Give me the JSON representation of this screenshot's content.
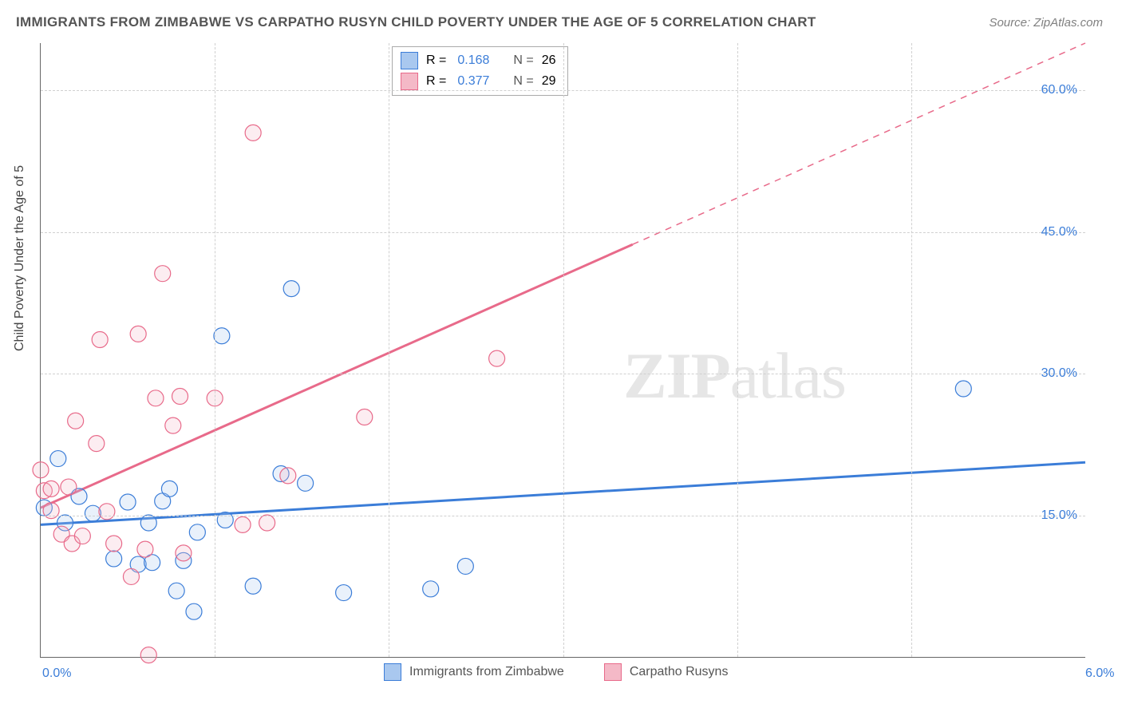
{
  "title": "IMMIGRANTS FROM ZIMBABWE VS CARPATHO RUSYN CHILD POVERTY UNDER THE AGE OF 5 CORRELATION CHART",
  "source": "Source: ZipAtlas.com",
  "watermark_bold": "ZIP",
  "watermark_light": "atlas",
  "yaxis_title": "Child Poverty Under the Age of 5",
  "chart": {
    "type": "scatter",
    "background_color": "#ffffff",
    "grid_color": "#d0d0d0",
    "axis_color": "#666666",
    "tick_label_color": "#3b7dd8",
    "tick_fontsize": 16,
    "title_fontsize": 17,
    "title_color": "#555555",
    "xlim": [
      0.0,
      6.0
    ],
    "ylim": [
      0.0,
      65.0
    ],
    "x_ticks": [
      0.0,
      6.0
    ],
    "x_tick_labels": [
      "0.0%",
      "6.0%"
    ],
    "y_ticks": [
      15.0,
      30.0,
      45.0,
      60.0
    ],
    "y_tick_labels": [
      "15.0%",
      "30.0%",
      "45.0%",
      "60.0%"
    ],
    "x_gridlines": [
      1.0,
      2.0,
      3.0,
      4.0,
      5.0
    ],
    "marker_radius": 10,
    "marker_stroke_width": 1.2,
    "marker_fill_opacity": 0.25,
    "trend_line_width": 3,
    "series": [
      {
        "key": "zimbabwe",
        "label": "Immigrants from Zimbabwe",
        "color_stroke": "#3b7dd8",
        "color_fill": "#a9c8ef",
        "R": "0.168",
        "N": "26",
        "points": [
          [
            0.02,
            15.8
          ],
          [
            0.1,
            21.0
          ],
          [
            0.14,
            14.2
          ],
          [
            0.22,
            17.0
          ],
          [
            0.3,
            15.2
          ],
          [
            0.42,
            10.4
          ],
          [
            0.5,
            16.4
          ],
          [
            0.56,
            9.8
          ],
          [
            0.62,
            14.2
          ],
          [
            0.64,
            10.0
          ],
          [
            0.7,
            16.5
          ],
          [
            0.74,
            17.8
          ],
          [
            0.78,
            7.0
          ],
          [
            0.82,
            10.2
          ],
          [
            0.88,
            4.8
          ],
          [
            0.9,
            13.2
          ],
          [
            1.04,
            34.0
          ],
          [
            1.06,
            14.5
          ],
          [
            1.22,
            7.5
          ],
          [
            1.38,
            19.4
          ],
          [
            1.44,
            39.0
          ],
          [
            1.52,
            18.4
          ],
          [
            1.74,
            6.8
          ],
          [
            2.24,
            7.2
          ],
          [
            2.44,
            9.6
          ],
          [
            5.3,
            28.4
          ]
        ],
        "trend": {
          "x1": 0.0,
          "y1": 14.0,
          "x2": 6.0,
          "y2": 20.6,
          "dashed_from_x": null
        }
      },
      {
        "key": "carpatho",
        "label": "Carpatho Rusyns",
        "color_stroke": "#e86a8a",
        "color_fill": "#f4b9c7",
        "R": "0.377",
        "N": "29",
        "points": [
          [
            0.0,
            19.8
          ],
          [
            0.02,
            17.6
          ],
          [
            0.06,
            15.5
          ],
          [
            0.06,
            17.8
          ],
          [
            0.12,
            13.0
          ],
          [
            0.16,
            18.0
          ],
          [
            0.18,
            12.0
          ],
          [
            0.2,
            25.0
          ],
          [
            0.24,
            12.8
          ],
          [
            0.32,
            22.6
          ],
          [
            0.34,
            33.6
          ],
          [
            0.38,
            15.4
          ],
          [
            0.42,
            12.0
          ],
          [
            0.52,
            8.5
          ],
          [
            0.56,
            34.2
          ],
          [
            0.6,
            11.4
          ],
          [
            0.62,
            0.2
          ],
          [
            0.66,
            27.4
          ],
          [
            0.7,
            40.6
          ],
          [
            0.76,
            24.5
          ],
          [
            0.8,
            27.6
          ],
          [
            0.82,
            11.0
          ],
          [
            1.0,
            27.4
          ],
          [
            1.16,
            14.0
          ],
          [
            1.22,
            55.5
          ],
          [
            1.3,
            14.2
          ],
          [
            1.42,
            19.2
          ],
          [
            1.86,
            25.4
          ],
          [
            2.62,
            31.6
          ]
        ],
        "trend": {
          "x1": 0.0,
          "y1": 15.8,
          "x2": 6.0,
          "y2": 65.0,
          "dashed_from_x": 3.4
        }
      }
    ],
    "legend_top": {
      "r_label": "R =",
      "n_label": "N ="
    }
  }
}
